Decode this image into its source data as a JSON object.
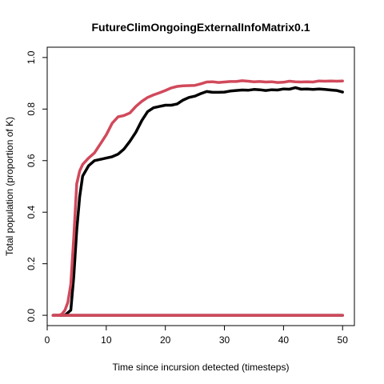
{
  "chart_data": {
    "type": "line",
    "title": "FutureClimOngoingExternalInfoMatrix0.1",
    "xlabel": "Time since incursion detected (timesteps)",
    "ylabel": "Total population (proportion of K)",
    "xlim": [
      0,
      52
    ],
    "ylim": [
      -0.04,
      1.04
    ],
    "xticks": [
      0,
      10,
      20,
      30,
      40,
      50
    ],
    "yticks": [
      0.0,
      0.2,
      0.4,
      0.6,
      0.8,
      1.0
    ],
    "xtick_labels": [
      "0",
      "10",
      "20",
      "30",
      "40",
      "50"
    ],
    "ytick_labels": [
      "0.0",
      "0.2",
      "0.4",
      "0.6",
      "0.8",
      "1.0"
    ],
    "grid": false,
    "legend": "none",
    "series": [
      {
        "color": "#000000",
        "x": [
          1,
          2,
          3,
          4,
          4.5,
          5,
          5.5,
          6,
          7,
          8,
          9,
          10,
          11,
          12,
          13,
          14,
          15,
          16,
          17,
          18,
          19,
          20,
          21,
          22,
          23,
          24,
          25,
          26,
          27,
          28,
          29,
          30,
          31,
          32,
          33,
          34,
          35,
          36,
          37,
          38,
          39,
          40,
          41,
          42,
          43,
          44,
          45,
          46,
          47,
          48,
          49,
          50
        ],
        "y": [
          0.0,
          0.0,
          0.0,
          0.02,
          0.15,
          0.33,
          0.46,
          0.54,
          0.58,
          0.6,
          0.605,
          0.61,
          0.615,
          0.625,
          0.645,
          0.675,
          0.71,
          0.755,
          0.79,
          0.805,
          0.81,
          0.815,
          0.815,
          0.82,
          0.835,
          0.845,
          0.85,
          0.86,
          0.868,
          0.865,
          0.865,
          0.866,
          0.87,
          0.872,
          0.874,
          0.873,
          0.876,
          0.875,
          0.872,
          0.875,
          0.874,
          0.878,
          0.877,
          0.883,
          0.877,
          0.878,
          0.876,
          0.878,
          0.876,
          0.874,
          0.872,
          0.866
        ]
      },
      {
        "color": "#000000",
        "x": [
          1,
          50
        ],
        "y": [
          0.0,
          0.0
        ]
      },
      {
        "color": "#d1495b",
        "x": [
          1,
          2,
          2.5,
          3,
          3.5,
          4,
          4.5,
          5,
          5.5,
          6,
          7,
          8,
          9,
          10,
          11,
          12,
          13,
          14,
          15,
          16,
          17,
          18,
          19,
          20,
          21,
          22,
          23,
          24,
          25,
          26,
          27,
          28,
          29,
          30,
          31,
          32,
          33,
          34,
          35,
          36,
          37,
          38,
          39,
          40,
          41,
          42,
          43,
          44,
          45,
          46,
          47,
          48,
          49,
          50
        ],
        "y": [
          0.0,
          0.0,
          0.005,
          0.02,
          0.05,
          0.12,
          0.3,
          0.51,
          0.56,
          0.585,
          0.61,
          0.63,
          0.665,
          0.7,
          0.745,
          0.77,
          0.775,
          0.785,
          0.81,
          0.83,
          0.845,
          0.855,
          0.863,
          0.872,
          0.882,
          0.888,
          0.89,
          0.891,
          0.892,
          0.898,
          0.905,
          0.906,
          0.903,
          0.905,
          0.907,
          0.907,
          0.91,
          0.908,
          0.906,
          0.907,
          0.905,
          0.906,
          0.903,
          0.904,
          0.908,
          0.906,
          0.905,
          0.906,
          0.905,
          0.909,
          0.908,
          0.909,
          0.908,
          0.909
        ]
      },
      {
        "color": "#d1495b",
        "x": [
          1,
          50
        ],
        "y": [
          0.0,
          0.0
        ]
      }
    ]
  }
}
